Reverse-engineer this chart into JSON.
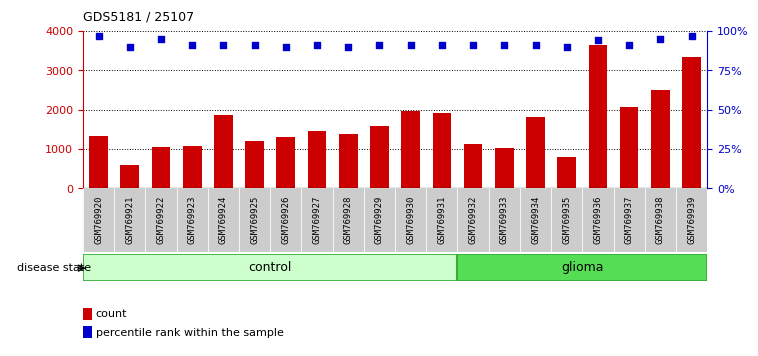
{
  "title": "GDS5181 / 25107",
  "samples": [
    "GSM769920",
    "GSM769921",
    "GSM769922",
    "GSM769923",
    "GSM769924",
    "GSM769925",
    "GSM769926",
    "GSM769927",
    "GSM769928",
    "GSM769929",
    "GSM769930",
    "GSM769931",
    "GSM769932",
    "GSM769933",
    "GSM769934",
    "GSM769935",
    "GSM769936",
    "GSM769937",
    "GSM769938",
    "GSM769939"
  ],
  "counts": [
    1340,
    600,
    1060,
    1080,
    1870,
    1210,
    1310,
    1460,
    1380,
    1590,
    1960,
    1920,
    1140,
    1040,
    1810,
    800,
    3650,
    2060,
    2490,
    3330
  ],
  "percentile_ranks": [
    97,
    90,
    95,
    91,
    91,
    91,
    90,
    91,
    90,
    91,
    91,
    91,
    91,
    91,
    91,
    90,
    94,
    91,
    95,
    97
  ],
  "bar_color": "#cc0000",
  "dot_color": "#0000cc",
  "control_count": 12,
  "glioma_count": 8,
  "control_label": "control",
  "glioma_label": "glioma",
  "disease_state_label": "disease state",
  "legend_count_label": "count",
  "legend_percentile_label": "percentile rank within the sample",
  "ylim_left": [
    0,
    4000
  ],
  "yticks_left": [
    0,
    1000,
    2000,
    3000,
    4000
  ],
  "ylim_right": [
    0,
    100
  ],
  "yticks_right": [
    0,
    25,
    50,
    75,
    100
  ],
  "ytick_labels_right": [
    "0%",
    "25%",
    "50%",
    "75%",
    "100%"
  ],
  "bar_width": 0.6,
  "control_bg": "#ccffcc",
  "glioma_bg": "#55dd55"
}
